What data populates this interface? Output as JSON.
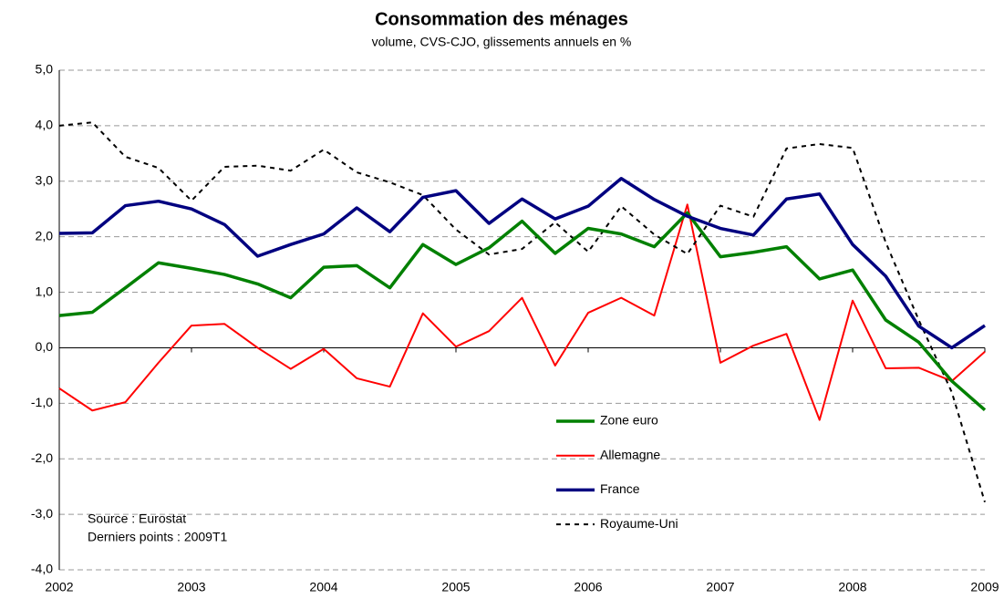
{
  "chart_data": {
    "type": "line",
    "title": "Consommation des ménages",
    "subtitle": "volume, CVS-CJO, glissements annuels en %",
    "annotations": [
      "Source : Eurostat",
      "Derniers points : 2009T1"
    ],
    "x": [
      2002,
      2002.25,
      2002.5,
      2002.75,
      2003,
      2003.25,
      2003.5,
      2003.75,
      2004,
      2004.25,
      2004.5,
      2004.75,
      2005,
      2005.25,
      2005.5,
      2005.75,
      2006,
      2006.25,
      2006.5,
      2006.75,
      2007,
      2007.25,
      2007.5,
      2007.75,
      2008,
      2008.25,
      2008.5,
      2008.75,
      2009
    ],
    "series": [
      {
        "name": "Zone euro",
        "color": "#008000",
        "values": [
          0.58,
          0.64,
          1.08,
          1.53,
          1.43,
          1.32,
          1.15,
          0.9,
          1.45,
          1.48,
          1.08,
          1.86,
          1.5,
          1.8,
          2.28,
          1.7,
          2.15,
          2.05,
          1.82,
          2.43,
          1.64,
          1.72,
          1.82,
          1.24,
          1.4,
          0.5,
          0.1,
          -0.6,
          -1.12
        ]
      },
      {
        "name": "Allemagne",
        "color": "#ff0000",
        "values": [
          -0.73,
          -1.13,
          -0.98,
          -0.27,
          0.4,
          0.43,
          0.0,
          -0.38,
          -0.02,
          -0.55,
          -0.7,
          0.62,
          0.02,
          0.3,
          0.9,
          -0.32,
          0.63,
          0.9,
          0.58,
          2.58,
          -0.27,
          0.04,
          0.25,
          -1.3,
          0.85,
          -0.37,
          -0.36,
          -0.6,
          -0.07
        ]
      },
      {
        "name": "France",
        "color": "#000080",
        "values": [
          2.06,
          2.07,
          2.56,
          2.64,
          2.5,
          2.22,
          1.65,
          1.86,
          2.05,
          2.52,
          2.09,
          2.71,
          2.83,
          2.24,
          2.68,
          2.32,
          2.55,
          3.05,
          2.67,
          2.37,
          2.15,
          2.03,
          2.68,
          2.77,
          1.86,
          1.29,
          0.39,
          0.0,
          0.4
        ]
      },
      {
        "name": "Royaume-Uni",
        "color": "#000000",
        "dashed": true,
        "values": [
          4.0,
          4.06,
          3.44,
          3.24,
          2.65,
          3.26,
          3.28,
          3.19,
          3.57,
          3.16,
          2.98,
          2.75,
          2.13,
          1.68,
          1.78,
          2.26,
          1.73,
          2.55,
          2.04,
          1.69,
          2.56,
          2.36,
          3.59,
          3.67,
          3.6,
          1.9,
          0.5,
          -0.8,
          -2.78
        ]
      }
    ],
    "xlim": [
      2002,
      2009
    ],
    "xticks": [
      2002,
      2003,
      2004,
      2005,
      2006,
      2007,
      2008,
      2009
    ],
    "ylim": [
      -4,
      5
    ],
    "yticks": [
      {
        "value": -4,
        "label": "-4,0"
      },
      {
        "value": -3,
        "label": "-3,0"
      },
      {
        "value": -2,
        "label": "-2,0"
      },
      {
        "value": -1,
        "label": "-1,0"
      },
      {
        "value": 0,
        "label": "0,0"
      },
      {
        "value": 1,
        "label": "1,0"
      },
      {
        "value": 2,
        "label": "2,0"
      },
      {
        "value": 3,
        "label": "3,0"
      },
      {
        "value": 4,
        "label": "4,0"
      },
      {
        "value": 5,
        "label": "5,0"
      }
    ],
    "grid": true
  }
}
